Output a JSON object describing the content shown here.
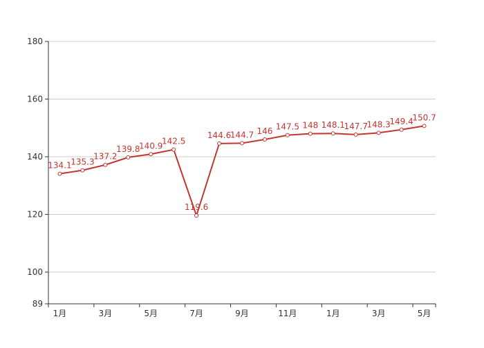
{
  "chart_data": {
    "type": "line",
    "categories": [
      "1月",
      null,
      "3月",
      null,
      "5月",
      null,
      "7月",
      null,
      "9月",
      null,
      "11月",
      null,
      "1月",
      null,
      "3月",
      null,
      "5月"
    ],
    "series": [
      {
        "color": "#c23531",
        "values": [
          134.1,
          135.3,
          137.2,
          139.8,
          140.9,
          142.5,
          119.6,
          144.6,
          144.7,
          146,
          147.5,
          148,
          148.1,
          147.7,
          148.3,
          149.4,
          150.7
        ]
      }
    ],
    "ylim": [
      89,
      180
    ],
    "yticks": [
      89,
      100,
      120,
      140,
      160,
      180
    ],
    "grid": true
  }
}
